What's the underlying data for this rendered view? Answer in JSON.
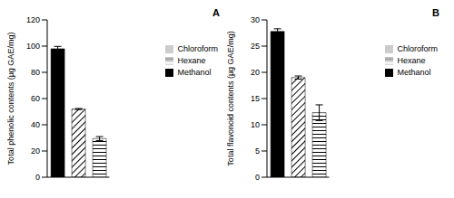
{
  "chart_data": [
    {
      "type": "bar",
      "title": "A",
      "ylabel": "Total phenolic contents (µg GAE/mg)",
      "categories": [
        null
      ],
      "series": [
        {
          "name": "Methanol",
          "color": "#000000",
          "values": [
            98
          ],
          "errors": [
            1.8
          ]
        },
        {
          "name": "Chloroform",
          "color": "#000000",
          "values": [
            52
          ],
          "errors": [
            0.4
          ]
        },
        {
          "name": "Hexane",
          "color": "#000000",
          "values": [
            29.5
          ],
          "errors": [
            1.5
          ]
        }
      ],
      "ylim": [
        0,
        120
      ],
      "yticks": [
        0,
        20,
        40,
        60,
        80,
        100,
        120
      ],
      "legend": "upper right",
      "tick_labels": "y"
    },
    {
      "type": "bar",
      "title": "B",
      "ylabel": "Total flavonoid contents (µg GAE/mg)",
      "categories": [
        null
      ],
      "series": [
        {
          "name": "Methanol",
          "color": "#000000",
          "values": [
            27.8
          ],
          "errors": [
            0.5
          ]
        },
        {
          "name": "Chloroform",
          "color": "#000000",
          "values": [
            19
          ],
          "errors": [
            0.3
          ]
        },
        {
          "name": "Hexane",
          "color": "#000000",
          "values": [
            12.3
          ],
          "errors": [
            1.5
          ]
        }
      ],
      "ylim": [
        0,
        30
      ],
      "yticks": [
        0,
        5,
        10,
        15,
        20,
        25,
        30
      ],
      "legend": "upper right",
      "tick_labels": "y"
    }
  ]
}
